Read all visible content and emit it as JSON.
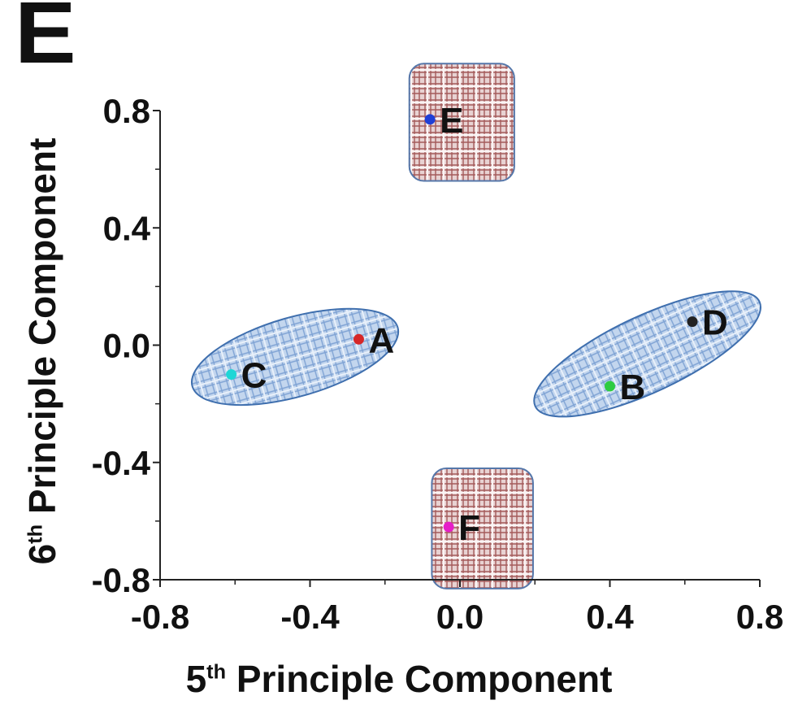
{
  "panel_label": "E",
  "chart_data": {
    "type": "scatter",
    "xlabel": {
      "ordinal": "5",
      "suffix": "th",
      "text": "Principle Component"
    },
    "ylabel": {
      "ordinal": "6",
      "suffix": "th",
      "text": "Principle Component"
    },
    "xlim": [
      -0.8,
      0.8
    ],
    "ylim": [
      -0.8,
      0.8
    ],
    "xticks": [
      "-0.8",
      "-0.4",
      "0.0",
      "0.4",
      "0.8"
    ],
    "yticks": [
      "-0.8",
      "-0.4",
      "0.0",
      "0.4",
      "0.8"
    ],
    "xtick_values": [
      -0.8,
      -0.4,
      0.0,
      0.4,
      0.8
    ],
    "ytick_values": [
      -0.8,
      -0.4,
      0.0,
      0.4,
      0.8
    ],
    "points": [
      {
        "label": "A",
        "x": -0.27,
        "y": 0.02,
        "color": "#d62728"
      },
      {
        "label": "B",
        "x": 0.4,
        "y": -0.14,
        "color": "#2ecc40"
      },
      {
        "label": "C",
        "x": -0.61,
        "y": -0.1,
        "color": "#1ed6d6"
      },
      {
        "label": "D",
        "x": 0.62,
        "y": 0.08,
        "color": "#222222"
      },
      {
        "label": "E",
        "x": -0.08,
        "y": 0.77,
        "color": "#1f3fd6"
      },
      {
        "label": "F",
        "x": -0.03,
        "y": -0.62,
        "color": "#e61ec8"
      }
    ],
    "groups": [
      {
        "shape": "ellipse",
        "members": [
          "A",
          "C"
        ],
        "cx": -0.44,
        "cy": -0.04,
        "rx": 0.285,
        "ry": 0.135,
        "angle_deg": -16,
        "color": "#aec6e6"
      },
      {
        "shape": "ellipse",
        "members": [
          "B",
          "D"
        ],
        "cx": 0.5,
        "cy": -0.03,
        "rx": 0.33,
        "ry": 0.13,
        "angle_deg": -25,
        "color": "#aec6e6"
      },
      {
        "shape": "rounded-rect",
        "members": [
          "E"
        ],
        "x0": -0.135,
        "x1": 0.145,
        "y0": 0.56,
        "y1": 0.96,
        "color": "#c89a9a"
      },
      {
        "shape": "rounded-rect",
        "members": [
          "F"
        ],
        "x0": -0.075,
        "x1": 0.195,
        "y0": -0.83,
        "y1": -0.42,
        "color": "#c89a9a"
      }
    ]
  }
}
